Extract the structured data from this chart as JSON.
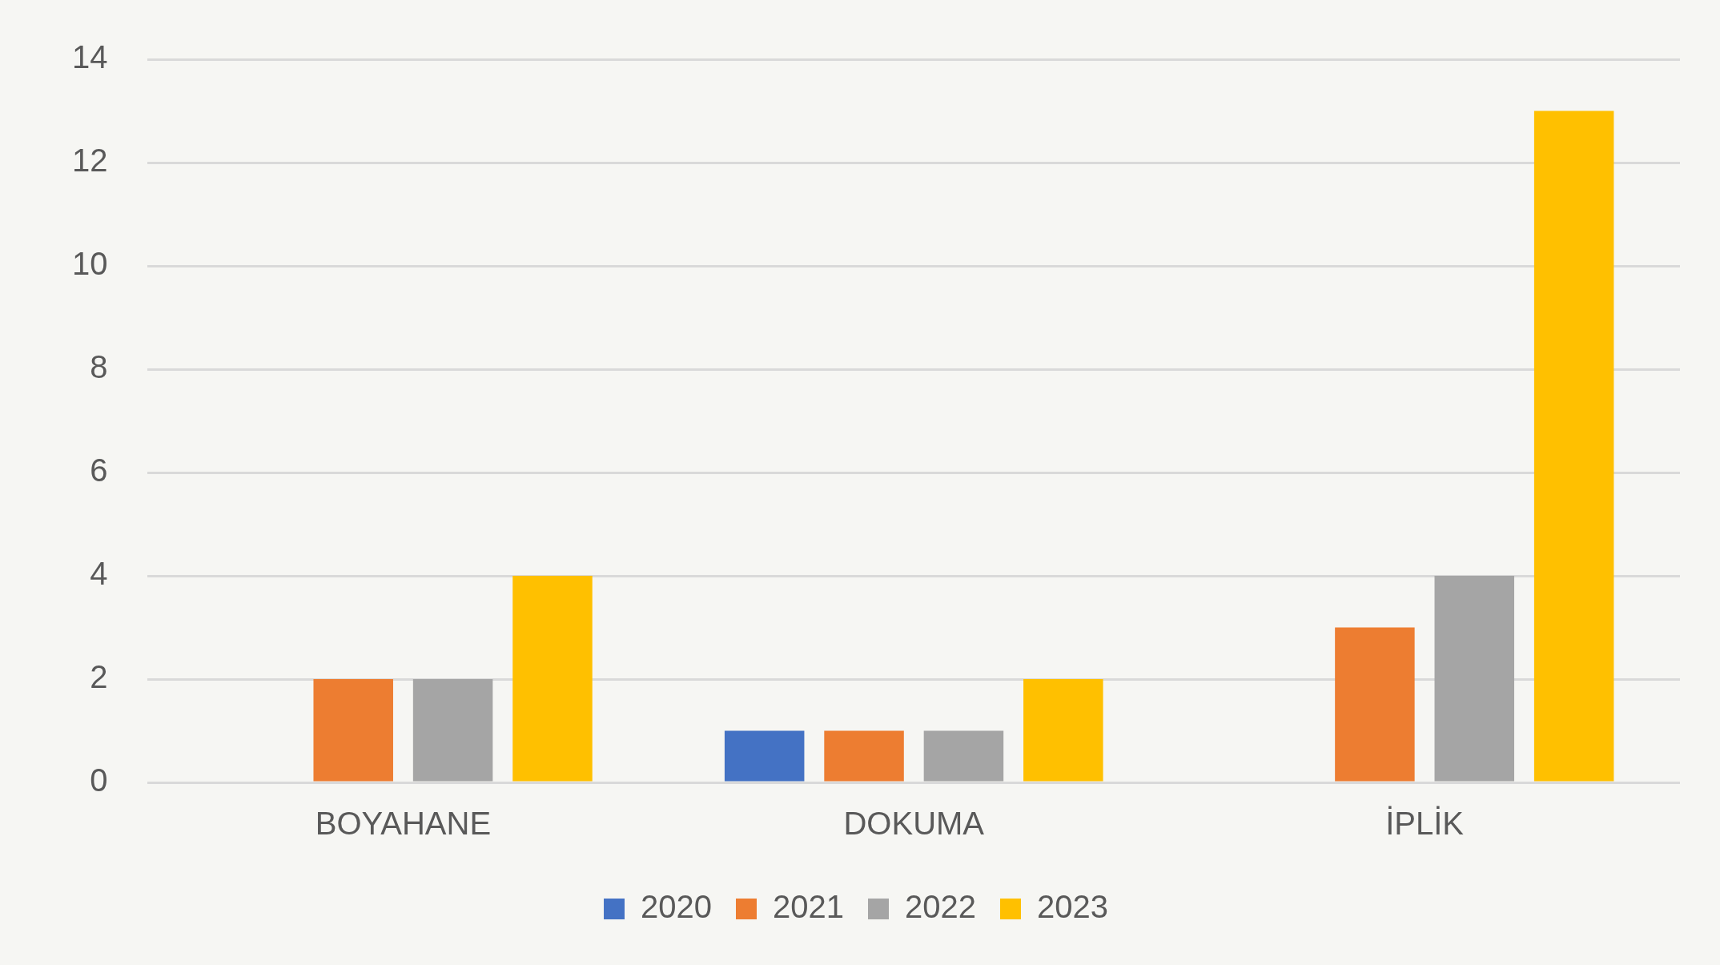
{
  "chart_data": {
    "type": "bar",
    "categories": [
      "BOYAHANE",
      "DOKUMA",
      "İPLİK"
    ],
    "series": [
      {
        "name": "2020",
        "color": "#4472c4",
        "values": [
          0,
          1,
          0
        ]
      },
      {
        "name": "2021",
        "color": "#ed7d31",
        "values": [
          2,
          1,
          3
        ]
      },
      {
        "name": "2022",
        "color": "#a5a5a5",
        "values": [
          2,
          1,
          4
        ]
      },
      {
        "name": "2023",
        "color": "#ffc000",
        "values": [
          4,
          2,
          13
        ]
      }
    ],
    "ylim": [
      0,
      14
    ],
    "yticks": [
      0,
      2,
      4,
      6,
      8,
      10,
      12,
      14
    ],
    "grid": "y",
    "legend": "bottom"
  }
}
